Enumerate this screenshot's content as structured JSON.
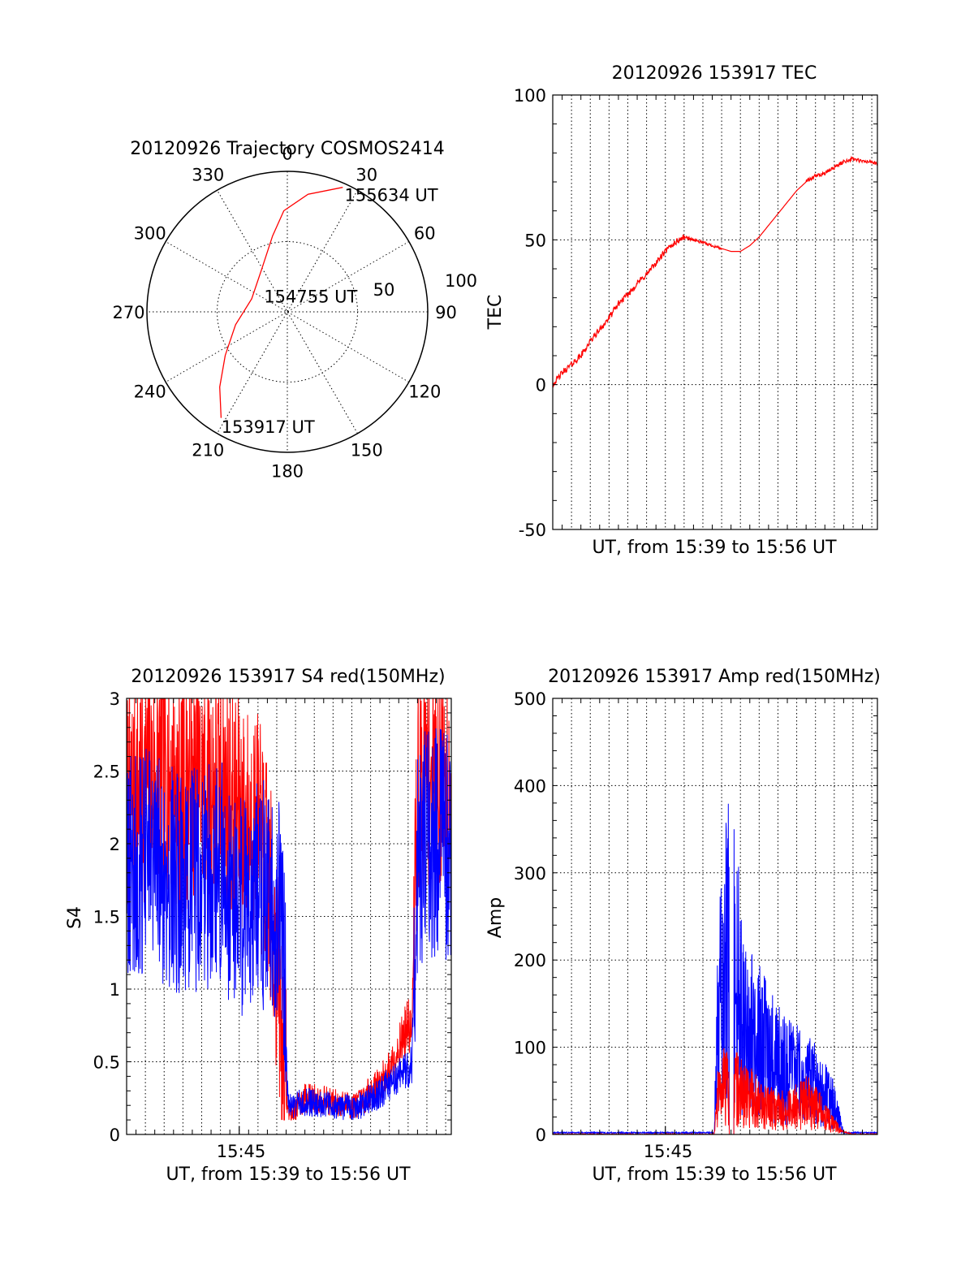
{
  "colors": {
    "red": "#ff0000",
    "blue": "#0000ff",
    "axis": "#000000",
    "background": "#ffffff"
  },
  "chart_data": [
    {
      "type": "polar",
      "title": "20120926 Trajectory COSMOS2414",
      "azimuth_labels": [
        "0",
        "30",
        "60",
        "90",
        "120",
        "150",
        "180",
        "210",
        "240",
        "270",
        "300",
        "330"
      ],
      "radius_labels": [
        "50",
        "100"
      ],
      "rlim": [
        0,
        100
      ],
      "grid": true,
      "series": [
        {
          "color": "red",
          "points": [
            {
              "az": 212,
              "r": 89
            },
            {
              "az": 222,
              "r": 72
            },
            {
              "az": 235,
              "r": 54
            },
            {
              "az": 256,
              "r": 38
            },
            {
              "az": 290,
              "r": 27
            },
            {
              "az": 330,
              "r": 36
            },
            {
              "az": 349,
              "r": 55
            },
            {
              "az": 358,
              "r": 72
            },
            {
              "az": 10,
              "r": 85
            },
            {
              "az": 24,
              "r": 97
            }
          ]
        }
      ],
      "annotations": [
        {
          "text": "155634 UT",
          "az": 26,
          "r": 93
        },
        {
          "text": "154755 UT",
          "az": 304,
          "r": 20
        },
        {
          "text": "153917 UT",
          "az": 210,
          "r": 94
        }
      ]
    },
    {
      "type": "line",
      "title": "20120926 153917 TEC",
      "xlabel": "UT, from 15:39 to 15:56 UT",
      "ylabel": "TEC",
      "ylim": [
        -50,
        100
      ],
      "yticks": [
        "-50",
        "0",
        "50",
        "100"
      ],
      "xlim_min": [
        0,
        17.3
      ],
      "grid": true,
      "series": [
        {
          "color": "red",
          "x": [
            0,
            0.5,
            1,
            1.5,
            2,
            2.5,
            3,
            3.5,
            4,
            4.5,
            5,
            5.5,
            6,
            6.5,
            7,
            7.5,
            8,
            8.5,
            9,
            9.5,
            10,
            10.5,
            11,
            11.5,
            12,
            12.5,
            13,
            13.5,
            14,
            14.5,
            15,
            15.5,
            16,
            16.5,
            17,
            17.3
          ],
          "y": [
            0,
            4,
            7,
            10,
            15,
            19,
            23,
            28,
            31,
            35,
            38,
            42,
            46,
            49,
            51,
            50,
            49,
            48,
            47,
            46,
            46,
            48,
            51,
            55,
            59,
            63,
            67,
            70,
            72,
            73,
            75,
            77,
            78,
            77,
            77,
            76
          ]
        }
      ]
    },
    {
      "type": "line",
      "title": "20120926 153917 S4 red(150MHz)",
      "xlabel": "UT, from 15:39 to 15:56 UT",
      "ylabel": "S4",
      "xticklabel": "15:45",
      "xtick_min": 6,
      "xlim_min": [
        0,
        17.3
      ],
      "ylim": [
        0,
        3
      ],
      "yticks": [
        "0",
        "0.5",
        "1",
        "1.5",
        "2",
        "2.5",
        "3"
      ],
      "grid": true,
      "series": [
        {
          "color": "red",
          "x": [
            0,
            1,
            2,
            3,
            4,
            5,
            6,
            7,
            7.5,
            8,
            8.3,
            8.6,
            8.8,
            9.5,
            10,
            11,
            12,
            12.5,
            13,
            13.5,
            14,
            14.5,
            15,
            15.2,
            15.5,
            16,
            17,
            17.3
          ],
          "y": [
            2.3,
            2.4,
            2.5,
            2.3,
            2.4,
            2.4,
            2.2,
            2.1,
            1.8,
            1.2,
            0.6,
            0.15,
            0.15,
            0.25,
            0.25,
            0.22,
            0.2,
            0.22,
            0.3,
            0.35,
            0.45,
            0.6,
            0.75,
            0.7,
            2.3,
            2.5,
            2.5,
            2.4
          ]
        },
        {
          "color": "blue",
          "x": [
            0,
            1,
            2,
            3,
            4,
            5,
            6,
            7,
            7.5,
            8,
            8.3,
            8.6,
            8.8,
            9.5,
            10,
            11,
            12,
            12.5,
            13,
            13.5,
            14,
            14.5,
            15,
            15.2,
            15.5,
            16,
            17,
            17.3
          ],
          "y": [
            1.8,
            1.9,
            1.8,
            1.7,
            1.8,
            1.8,
            1.6,
            1.7,
            1.6,
            1.5,
            1.5,
            0.2,
            0.2,
            0.22,
            0.22,
            0.2,
            0.18,
            0.2,
            0.25,
            0.28,
            0.35,
            0.4,
            0.45,
            0.5,
            1.9,
            2.0,
            2.0,
            1.9
          ]
        }
      ]
    },
    {
      "type": "line",
      "title": "20120926 153917 Amp red(150MHz)",
      "xlabel": "UT, from 15:39 to 15:56 UT",
      "ylabel": "Amp",
      "xticklabel": "15:45",
      "xtick_min": 6,
      "xlim_min": [
        0,
        17.3
      ],
      "ylim": [
        0,
        500
      ],
      "yticks": [
        "0",
        "100",
        "200",
        "300",
        "400",
        "500"
      ],
      "grid": true,
      "series": [
        {
          "color": "red",
          "x": [
            0,
            4,
            8,
            8.6,
            8.8,
            9,
            9.5,
            10,
            10.5,
            11,
            11.5,
            12,
            12.5,
            13,
            13.5,
            14,
            14.5,
            15,
            15.5,
            16,
            17.3
          ],
          "y": [
            0,
            0,
            0,
            0,
            40,
            55,
            60,
            45,
            40,
            35,
            30,
            28,
            25,
            30,
            35,
            30,
            20,
            10,
            3,
            0,
            0
          ]
        },
        {
          "color": "blue",
          "x": [
            0,
            4,
            8,
            8.6,
            8.8,
            9,
            9.5,
            10,
            10.5,
            11,
            11.5,
            12,
            12.5,
            13,
            13.5,
            14,
            14.5,
            15,
            15.5,
            16,
            17.3
          ],
          "y": [
            2,
            2,
            2,
            2,
            120,
            160,
            210,
            150,
            110,
            100,
            90,
            80,
            70,
            65,
            55,
            60,
            45,
            30,
            2,
            2,
            2
          ]
        }
      ]
    }
  ]
}
